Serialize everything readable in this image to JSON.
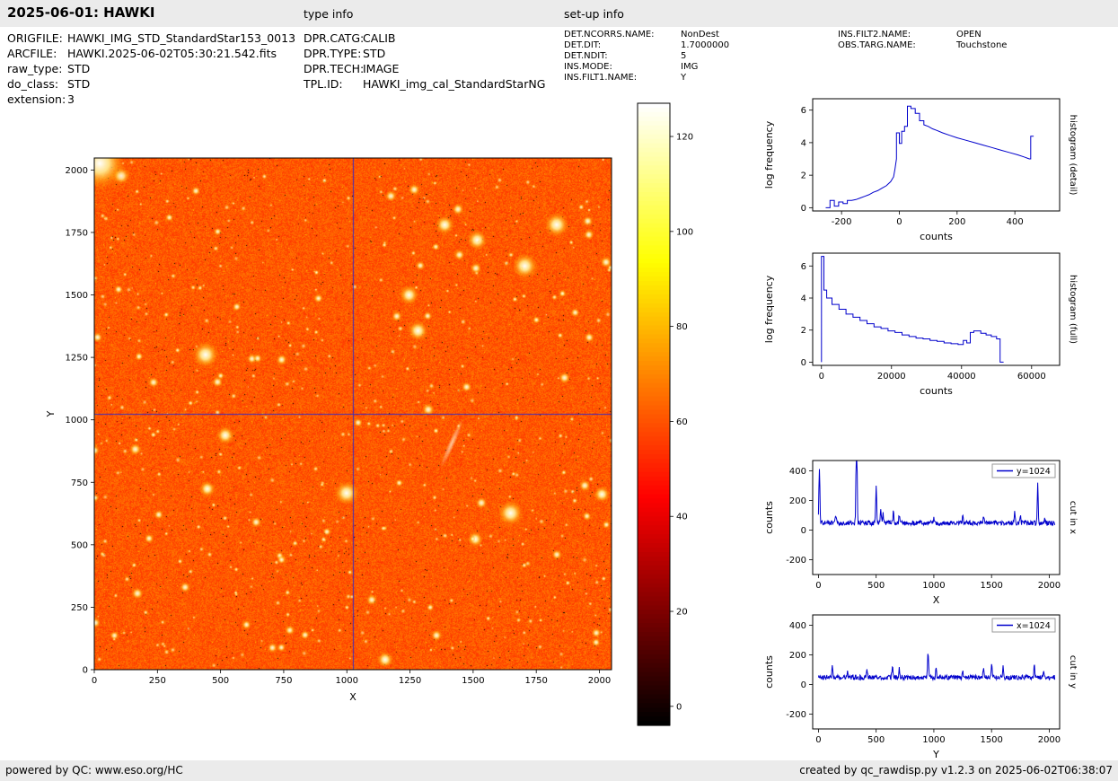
{
  "header": {
    "title": "2025-06-01: HAWKI",
    "type_info_label": "type info",
    "setup_info_label": "set-up info"
  },
  "file_info": {
    "rows": [
      {
        "label": "ORIGFILE:",
        "value": "HAWKI_IMG_STD_StandardStar153_0013"
      },
      {
        "label": "ARCFILE:",
        "value": "HAWKI.2025-06-02T05:30:21.542.fits"
      },
      {
        "label": "raw_type:",
        "value": "STD"
      },
      {
        "label": "do_class:",
        "value": "STD"
      },
      {
        "label": "extension:",
        "value": "3"
      }
    ]
  },
  "type_info": {
    "rows": [
      {
        "label": "DPR.CATG:",
        "value": "CALIB"
      },
      {
        "label": "DPR.TYPE:",
        "value": "STD"
      },
      {
        "label": "DPR.TECH:",
        "value": "IMAGE"
      },
      {
        "label": "TPL.ID:",
        "value": "HAWKI_img_cal_StandardStarNG"
      }
    ]
  },
  "setup_info": {
    "col1": [
      {
        "label": "DET.NCORRS.NAME:",
        "value": "NonDest"
      },
      {
        "label": "DET.DIT:",
        "value": "1.7000000"
      },
      {
        "label": "DET.NDIT:",
        "value": "5"
      },
      {
        "label": "INS.MODE:",
        "value": "IMG"
      },
      {
        "label": "INS.FILT1.NAME:",
        "value": "Y"
      }
    ],
    "col2": [
      {
        "label": "INS.FILT2.NAME:",
        "value": "OPEN"
      },
      {
        "label": "OBS.TARG.NAME:",
        "value": "Touchstone"
      }
    ]
  },
  "footer": {
    "left": "powered by QC: www.eso.org/HC",
    "right": "created by qc_rawdisp.py v1.2.3 on 2025-06-02T06:38:07"
  },
  "chart_data": [
    {
      "id": "main-image",
      "type": "heatmap",
      "description": "HAWKI raw standard-star field exposure, hot colormap, blue crosshair at x=1024 / y=1024",
      "xlabel": "X",
      "ylabel": "Y",
      "xlim": [
        0,
        2048
      ],
      "ylim": [
        0,
        2048
      ],
      "xticks": [
        0,
        250,
        500,
        750,
        1000,
        1250,
        1500,
        1750,
        2000
      ],
      "yticks": [
        0,
        250,
        500,
        750,
        1000,
        1250,
        1500,
        1750,
        2000
      ],
      "crosshair": {
        "x": 1024,
        "y": 1024
      },
      "background_level": 61,
      "noise_level": 7,
      "star_count": 520,
      "seed": 7,
      "crosshair_color": "#2828d2"
    },
    {
      "id": "colorbar",
      "type": "colorbar",
      "colormap": "hot",
      "ticks": [
        0,
        20,
        40,
        60,
        80,
        100,
        120
      ],
      "range": [
        -4,
        127
      ]
    },
    {
      "id": "hist-detail",
      "type": "line",
      "right_label": "histogram (detail)",
      "xlabel": "counts",
      "ylabel": "log frequency",
      "xlim": [
        -300,
        555
      ],
      "ylim": [
        -0.2,
        6.7
      ],
      "xticks": [
        -200,
        0,
        200,
        400
      ],
      "yticks": [
        0,
        2,
        4,
        6
      ],
      "color": "#0000cc",
      "points": [
        [
          -255,
          0
        ],
        [
          -240,
          0
        ],
        [
          -240,
          0.45
        ],
        [
          -225,
          0.45
        ],
        [
          -225,
          0.1
        ],
        [
          -210,
          0.1
        ],
        [
          -210,
          0.35
        ],
        [
          -195,
          0.35
        ],
        [
          -195,
          0.25
        ],
        [
          -180,
          0.25
        ],
        [
          -180,
          0.45
        ],
        [
          -165,
          0.45
        ],
        [
          -150,
          0.5
        ],
        [
          -135,
          0.6
        ],
        [
          -120,
          0.7
        ],
        [
          -105,
          0.8
        ],
        [
          -90,
          0.95
        ],
        [
          -75,
          1.05
        ],
        [
          -60,
          1.2
        ],
        [
          -45,
          1.35
        ],
        [
          -30,
          1.6
        ],
        [
          -20,
          1.9
        ],
        [
          -15,
          2.4
        ],
        [
          -10,
          3.0
        ],
        [
          -10,
          4.6
        ],
        [
          0,
          4.6
        ],
        [
          0,
          3.95
        ],
        [
          8,
          3.95
        ],
        [
          8,
          4.7
        ],
        [
          18,
          4.7
        ],
        [
          18,
          5.0
        ],
        [
          28,
          5.0
        ],
        [
          28,
          6.25
        ],
        [
          40,
          6.25
        ],
        [
          40,
          6.1
        ],
        [
          55,
          6.1
        ],
        [
          55,
          5.8
        ],
        [
          70,
          5.8
        ],
        [
          70,
          5.35
        ],
        [
          85,
          5.35
        ],
        [
          85,
          5.1
        ],
        [
          100,
          5.0
        ],
        [
          115,
          4.85
        ],
        [
          130,
          4.75
        ],
        [
          150,
          4.6
        ],
        [
          175,
          4.45
        ],
        [
          200,
          4.3
        ],
        [
          230,
          4.15
        ],
        [
          260,
          4.0
        ],
        [
          290,
          3.85
        ],
        [
          320,
          3.7
        ],
        [
          350,
          3.55
        ],
        [
          380,
          3.4
        ],
        [
          410,
          3.25
        ],
        [
          435,
          3.1
        ],
        [
          450,
          3.0
        ],
        [
          455,
          3.0
        ],
        [
          455,
          4.4
        ],
        [
          465,
          4.4
        ]
      ]
    },
    {
      "id": "hist-full",
      "type": "line",
      "right_label": "histogram (full)",
      "xlabel": "counts",
      "ylabel": "log frequency",
      "xlim": [
        -2500,
        68000
      ],
      "ylim": [
        -0.2,
        6.8
      ],
      "xticks": [
        0,
        20000,
        40000,
        60000
      ],
      "yticks": [
        0,
        2,
        4,
        6
      ],
      "color": "#0000cc",
      "points": [
        [
          0,
          0
        ],
        [
          0,
          6.6
        ],
        [
          700,
          6.6
        ],
        [
          700,
          4.5
        ],
        [
          1500,
          4.5
        ],
        [
          1500,
          4.0
        ],
        [
          3000,
          4.0
        ],
        [
          3000,
          3.6
        ],
        [
          5000,
          3.6
        ],
        [
          5000,
          3.3
        ],
        [
          7000,
          3.3
        ],
        [
          7000,
          3.0
        ],
        [
          9000,
          3.0
        ],
        [
          9000,
          2.8
        ],
        [
          11000,
          2.8
        ],
        [
          11000,
          2.6
        ],
        [
          13000,
          2.6
        ],
        [
          13000,
          2.4
        ],
        [
          15000,
          2.4
        ],
        [
          15000,
          2.2
        ],
        [
          17000,
          2.2
        ],
        [
          17000,
          2.1
        ],
        [
          19000,
          2.1
        ],
        [
          19000,
          1.95
        ],
        [
          21000,
          1.95
        ],
        [
          21000,
          1.85
        ],
        [
          23000,
          1.85
        ],
        [
          23000,
          1.7
        ],
        [
          25000,
          1.7
        ],
        [
          25000,
          1.6
        ],
        [
          27000,
          1.6
        ],
        [
          27000,
          1.5
        ],
        [
          29000,
          1.5
        ],
        [
          29000,
          1.45
        ],
        [
          31000,
          1.45
        ],
        [
          31000,
          1.35
        ],
        [
          33000,
          1.35
        ],
        [
          33000,
          1.3
        ],
        [
          35000,
          1.3
        ],
        [
          35000,
          1.2
        ],
        [
          37000,
          1.2
        ],
        [
          37000,
          1.15
        ],
        [
          39000,
          1.15
        ],
        [
          39000,
          1.1
        ],
        [
          40500,
          1.1
        ],
        [
          40500,
          1.35
        ],
        [
          41500,
          1.35
        ],
        [
          41500,
          1.2
        ],
        [
          42500,
          1.2
        ],
        [
          42500,
          1.85
        ],
        [
          43500,
          1.85
        ],
        [
          43500,
          1.95
        ],
        [
          45500,
          1.95
        ],
        [
          45500,
          1.8
        ],
        [
          47000,
          1.8
        ],
        [
          47000,
          1.7
        ],
        [
          48500,
          1.7
        ],
        [
          48500,
          1.6
        ],
        [
          50000,
          1.6
        ],
        [
          50000,
          1.45
        ],
        [
          51000,
          1.45
        ],
        [
          51000,
          0
        ],
        [
          52000,
          0
        ]
      ]
    },
    {
      "id": "cut-x",
      "type": "line",
      "legend": "y=1024",
      "right_label": "cut in x",
      "xlabel": "X",
      "ylabel": "counts",
      "xlim": [
        -50,
        2090
      ],
      "ylim": [
        -300,
        470
      ],
      "xticks": [
        0,
        500,
        1000,
        1500,
        2000
      ],
      "yticks": [
        -200,
        0,
        200,
        400
      ],
      "color": "#0000cc",
      "baseline": 48,
      "noise": 16,
      "seed": 11,
      "spikes": [
        [
          8,
          380
        ],
        [
          150,
          60
        ],
        [
          330,
          900
        ],
        [
          500,
          240
        ],
        [
          540,
          100
        ],
        [
          560,
          60
        ],
        [
          650,
          80
        ],
        [
          700,
          50
        ],
        [
          1000,
          40
        ],
        [
          1250,
          45
        ],
        [
          1430,
          40
        ],
        [
          1700,
          70
        ],
        [
          1750,
          50
        ],
        [
          1900,
          262
        ],
        [
          1960,
          40
        ]
      ]
    },
    {
      "id": "cut-y",
      "type": "line",
      "legend": "x=1024",
      "right_label": "cut in y",
      "xlabel": "Y",
      "ylabel": "counts",
      "xlim": [
        -50,
        2090
      ],
      "ylim": [
        -300,
        470
      ],
      "xticks": [
        0,
        500,
        1000,
        1500,
        2000
      ],
      "yticks": [
        -200,
        0,
        200,
        400
      ],
      "color": "#0000cc",
      "baseline": 48,
      "noise": 16,
      "seed": 12,
      "spikes": [
        [
          120,
          70
        ],
        [
          250,
          40
        ],
        [
          420,
          60
        ],
        [
          640,
          80
        ],
        [
          700,
          60
        ],
        [
          950,
          175
        ],
        [
          1020,
          60
        ],
        [
          1250,
          55
        ],
        [
          1430,
          70
        ],
        [
          1500,
          90
        ],
        [
          1600,
          70
        ],
        [
          1870,
          80
        ],
        [
          1950,
          50
        ]
      ]
    }
  ]
}
